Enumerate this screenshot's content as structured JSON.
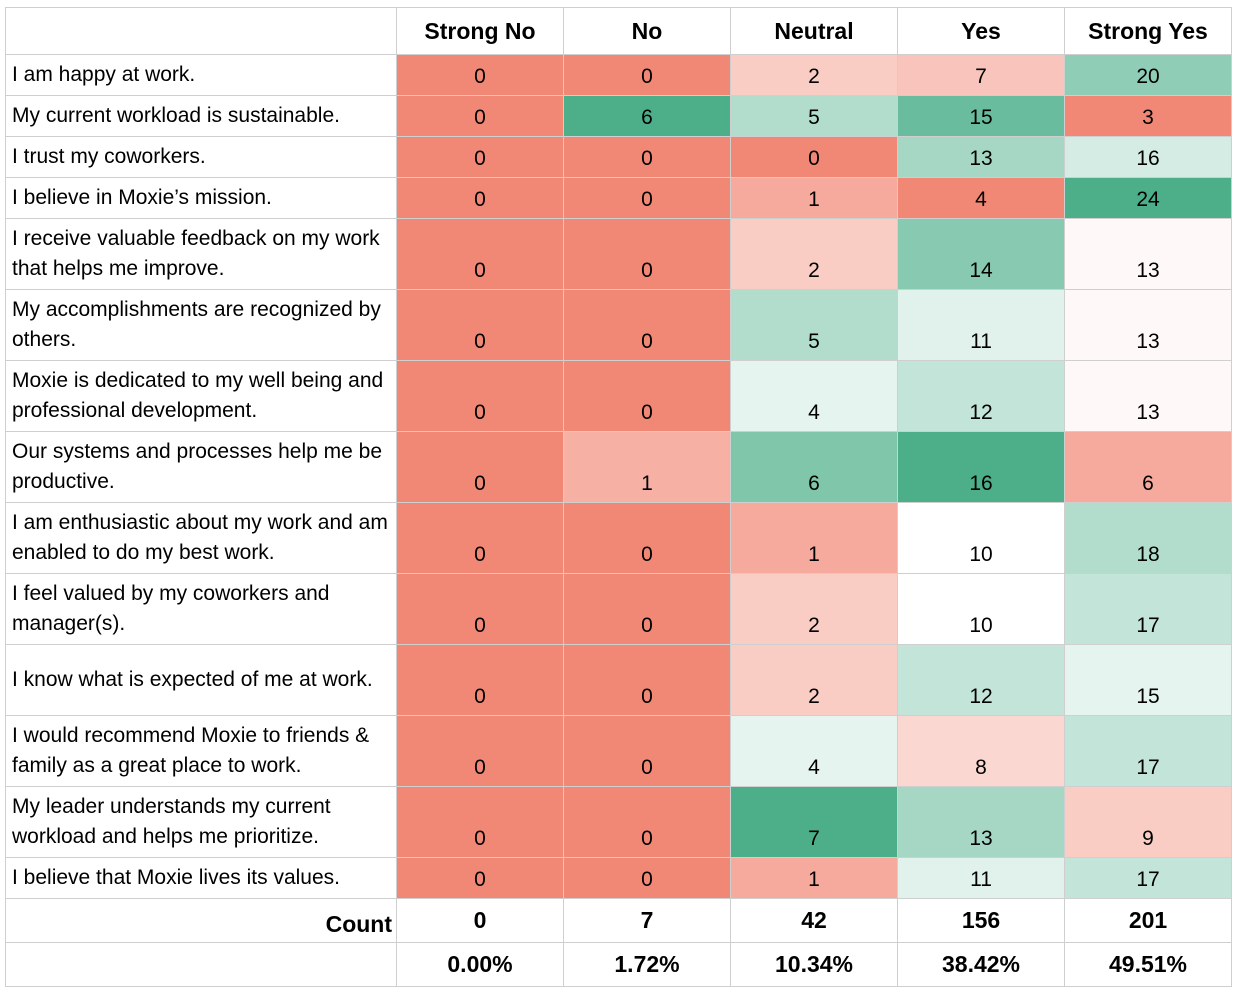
{
  "chart_data": {
    "type": "heatmap",
    "columns": [
      "Strong No",
      "No",
      "Neutral",
      "Yes",
      "Strong Yes"
    ],
    "rows": [
      {
        "label": "I am happy at work.",
        "values": [
          0,
          0,
          2,
          7,
          20
        ]
      },
      {
        "label": "My current workload is sustainable.",
        "values": [
          0,
          6,
          5,
          15,
          3
        ]
      },
      {
        "label": "I trust my coworkers.",
        "values": [
          0,
          0,
          0,
          13,
          16
        ]
      },
      {
        "label": "I believe in Moxie’s mission.",
        "values": [
          0,
          0,
          1,
          4,
          24
        ]
      },
      {
        "label": "I receive valuable feedback on my work that helps me improve.",
        "values": [
          0,
          0,
          2,
          14,
          13
        ]
      },
      {
        "label": "My accomplishments are recognized by others.",
        "values": [
          0,
          0,
          5,
          11,
          13
        ]
      },
      {
        "label": "Moxie is dedicated to my well being and professional development.",
        "values": [
          0,
          0,
          4,
          12,
          13
        ]
      },
      {
        "label": "Our systems and processes help me be productive.",
        "values": [
          0,
          1,
          6,
          16,
          6
        ]
      },
      {
        "label": "I am enthusiastic about my work and am enabled to do my best work.",
        "values": [
          0,
          0,
          1,
          10,
          18
        ]
      },
      {
        "label": "I feel valued by my coworkers and manager(s).",
        "values": [
          0,
          0,
          2,
          10,
          17
        ]
      },
      {
        "label": "I know what is expected of me at work.",
        "values": [
          0,
          0,
          2,
          12,
          15
        ]
      },
      {
        "label": "I would recommend Moxie to friends & family as a great place to work.",
        "values": [
          0,
          0,
          4,
          8,
          17
        ]
      },
      {
        "label": "My leader understands my current workload and helps me prioritize.",
        "values": [
          0,
          0,
          7,
          13,
          9
        ]
      },
      {
        "label": "I believe that Moxie lives its values.",
        "values": [
          0,
          0,
          1,
          11,
          17
        ]
      }
    ],
    "count_label": "Count",
    "counts": [
      "0",
      "7",
      "42",
      "156",
      "201"
    ],
    "percentages": [
      "0.00%",
      "1.72%",
      "10.34%",
      "38.42%",
      "49.51%"
    ],
    "colors": {
      "low": "#f18876",
      "mid": "#ffffff",
      "high": "#4caf8a"
    }
  }
}
